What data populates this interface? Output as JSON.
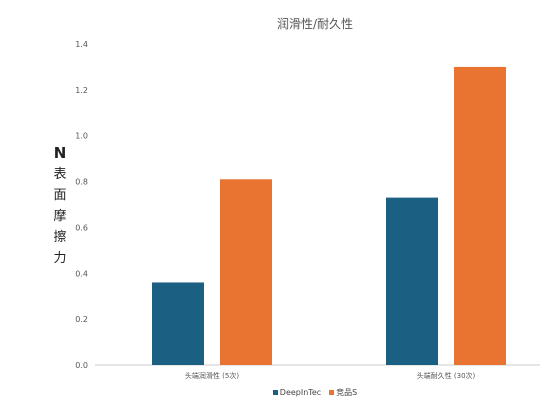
{
  "chart_data": {
    "type": "bar",
    "title": "润滑性/耐久性",
    "ylabel": "N 表面摩擦力",
    "ylabel_unit": "N",
    "ylabel_text": "表面摩擦力",
    "categories": [
      "头端润滑性 (5次)",
      "头端耐久性 (30次)"
    ],
    "series": [
      {
        "name": "DeepInTec",
        "values": [
          0.36,
          0.73
        ],
        "color": "#1b5f82"
      },
      {
        "name": "竞品S",
        "values": [
          0.81,
          1.3
        ],
        "color": "#e97331"
      }
    ],
    "ylim": [
      0,
      1.4
    ],
    "yticks": [
      "0.0",
      "0.2",
      "0.4",
      "0.6",
      "0.8",
      "1.0",
      "1.2",
      "1.4"
    ],
    "legend": "bottom",
    "grid": false
  }
}
